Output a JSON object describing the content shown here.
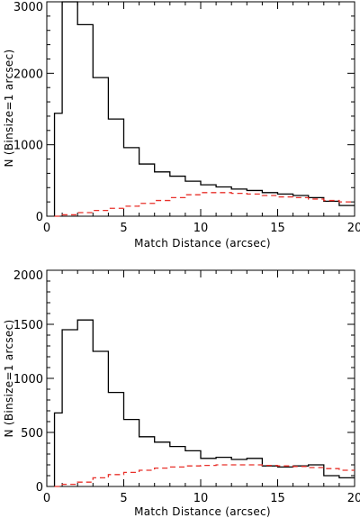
{
  "chart_data": [
    {
      "type": "line",
      "xlabel": "Match Distance (arcsec)",
      "ylabel": "N (Binsize=1 arcsec)",
      "xlim": [
        0,
        20
      ],
      "ylim": [
        0,
        3000
      ],
      "xticks": [
        0,
        5,
        10,
        15,
        20
      ],
      "yticks": [
        0,
        1000,
        2000,
        3000
      ],
      "bin_edges": [
        0.5,
        1,
        2,
        3,
        4,
        5,
        6,
        7,
        8,
        9,
        10,
        11,
        12,
        13,
        14,
        15,
        16,
        17,
        18,
        19,
        20
      ],
      "grid": false,
      "series": [
        {
          "color": "#000000",
          "style": "solid-step",
          "values": [
            1440,
            3000,
            2680,
            1940,
            1360,
            960,
            730,
            620,
            560,
            490,
            440,
            410,
            380,
            360,
            330,
            310,
            290,
            260,
            210,
            150
          ]
        },
        {
          "color": "#e8302a",
          "style": "dashed-step",
          "values": [
            0,
            20,
            50,
            80,
            110,
            140,
            180,
            220,
            260,
            300,
            330,
            330,
            320,
            310,
            290,
            270,
            260,
            240,
            220,
            200
          ]
        }
      ]
    },
    {
      "type": "line",
      "xlabel": "Match Distance (arcsec)",
      "ylabel": "N (Binsize=1 arcsec)",
      "xlim": [
        0,
        20
      ],
      "ylim": [
        0,
        2000
      ],
      "xticks": [
        0,
        5,
        10,
        15,
        20
      ],
      "yticks": [
        0,
        500,
        1000,
        1500,
        2000
      ],
      "bin_edges": [
        0.5,
        1,
        2,
        3,
        4,
        5,
        6,
        7,
        8,
        9,
        10,
        11,
        12,
        13,
        14,
        15,
        16,
        17,
        18,
        19,
        20
      ],
      "grid": false,
      "series": [
        {
          "color": "#000000",
          "style": "solid-step",
          "values": [
            680,
            1450,
            1540,
            1250,
            870,
            620,
            460,
            410,
            370,
            330,
            260,
            270,
            250,
            260,
            190,
            180,
            190,
            200,
            100,
            80
          ]
        },
        {
          "color": "#e8302a",
          "style": "dashed-step",
          "values": [
            0,
            20,
            40,
            80,
            110,
            130,
            150,
            170,
            180,
            190,
            195,
            200,
            200,
            200,
            195,
            190,
            185,
            175,
            165,
            150
          ]
        }
      ]
    }
  ]
}
